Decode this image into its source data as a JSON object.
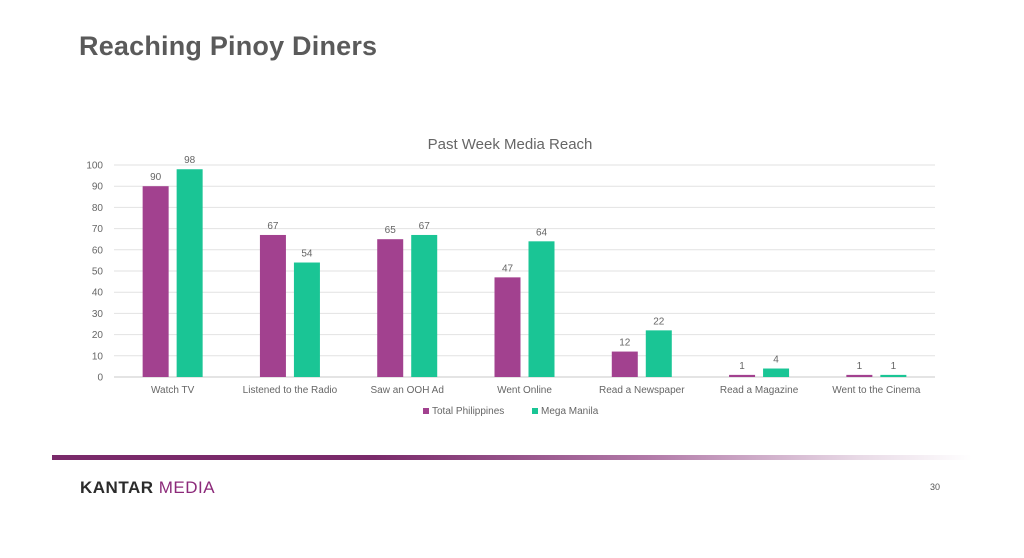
{
  "slide": {
    "title": "Reaching Pinoy Diners",
    "page_number": "30"
  },
  "brand": {
    "part1": "KANTAR",
    "part2": "MEDIA"
  },
  "colors": {
    "series_1": "#a2418f",
    "series_2": "#1ac595",
    "title_text": "#5a5a5a",
    "brand_accent": "#8c2a7a"
  },
  "chart_data": {
    "type": "bar",
    "title": "Past Week Media Reach",
    "categories": [
      "Watch TV",
      "Listened to the Radio",
      "Saw an OOH Ad",
      "Went Online",
      "Read a Newspaper",
      "Read a Magazine",
      "Went to the Cinema"
    ],
    "series": [
      {
        "name": "Total Philippines",
        "values": [
          90,
          67,
          65,
          47,
          12,
          1,
          1
        ]
      },
      {
        "name": "Mega Manila",
        "values": [
          98,
          54,
          67,
          64,
          22,
          4,
          1
        ]
      }
    ],
    "yticks": [
      0,
      10,
      20,
      30,
      40,
      50,
      60,
      70,
      80,
      90,
      100
    ],
    "ylim": [
      0,
      100
    ],
    "grid": true,
    "legend": "bottom"
  }
}
